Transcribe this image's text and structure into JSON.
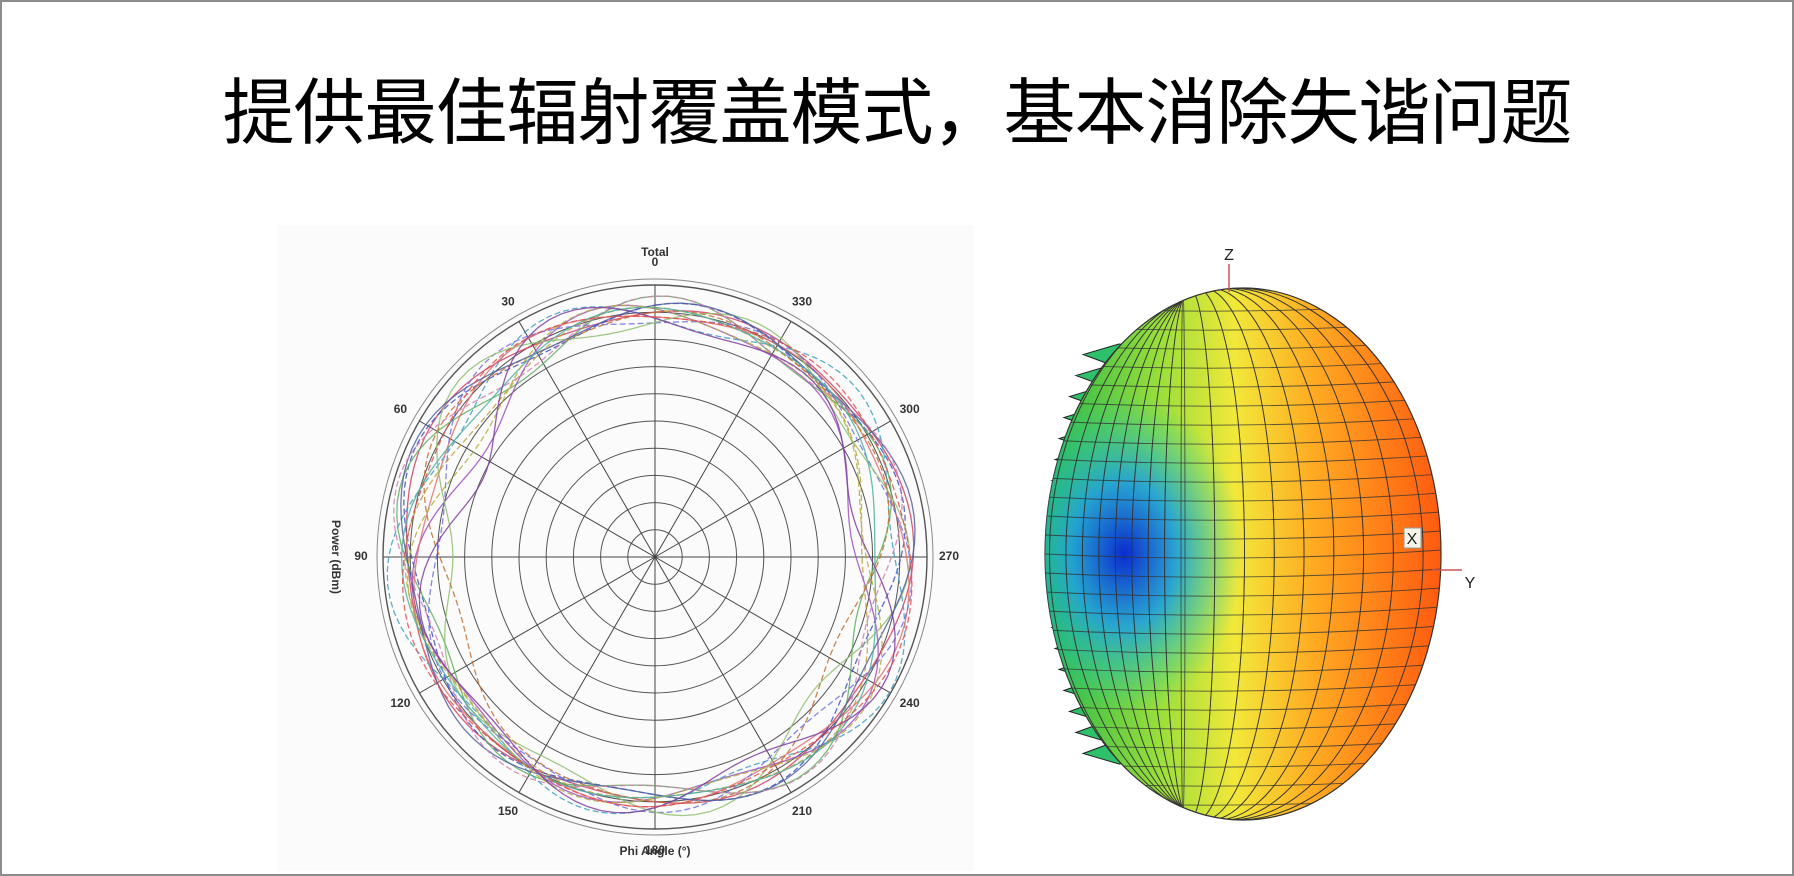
{
  "title": "提供最佳辐射覆盖模式，基本消除失谐问题",
  "polar_plot": {
    "title": "Total",
    "angle_labels": [
      0,
      30,
      60,
      90,
      120,
      150,
      180,
      210,
      240,
      270,
      300,
      330
    ],
    "radial_axis_label": "Power (dBm)",
    "angle_axis_label": "Phi Angle (°)"
  },
  "pattern_3d": {
    "axis_labels": {
      "z": "Z",
      "x": "X",
      "y": "Y"
    }
  }
}
